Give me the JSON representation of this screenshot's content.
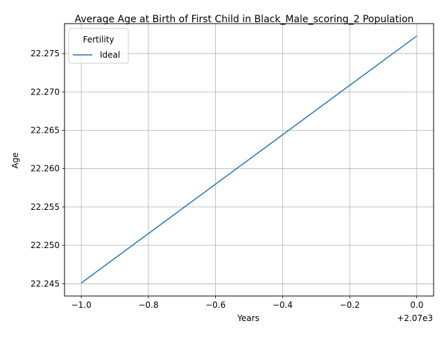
{
  "chart_data": {
    "type": "line",
    "title": "Average Age at Birth of First Child in Black_Male_scoring_2 Population",
    "xlabel": "Years",
    "ylabel": "Age",
    "x_offset_label": "+2.07e3",
    "x_ticks": [
      "−1.0",
      "−0.8",
      "−0.6",
      "−0.4",
      "−0.2",
      "0.0"
    ],
    "x_tick_values": [
      2069.0,
      2069.2,
      2069.4,
      2069.6,
      2069.8,
      2070.0
    ],
    "y_ticks": [
      "22.245",
      "22.250",
      "22.255",
      "22.260",
      "22.265",
      "22.270",
      "22.275"
    ],
    "y_tick_values": [
      22.245,
      22.25,
      22.255,
      22.26,
      22.265,
      22.27,
      22.275
    ],
    "xlim": [
      2068.95,
      2070.05
    ],
    "ylim": [
      22.2434,
      22.2789
    ],
    "grid": true,
    "legend": {
      "title": "Fertility",
      "placement": "top-left"
    },
    "series": [
      {
        "name": "Ideal",
        "color": "#1f77b4",
        "x": [
          2069,
          2070
        ],
        "y": [
          22.2451,
          22.2773
        ]
      }
    ]
  }
}
